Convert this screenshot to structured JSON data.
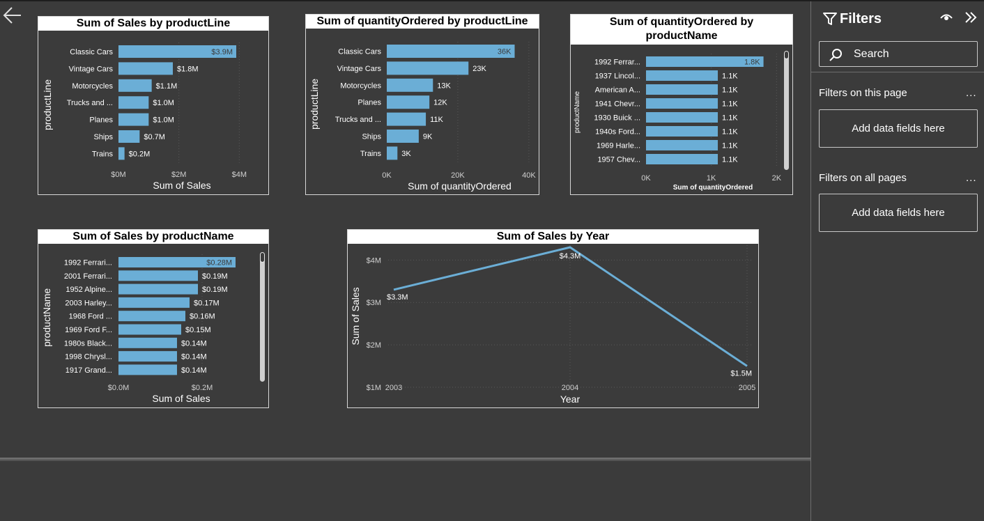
{
  "colors": {
    "bar": "#6baed6",
    "background": "#3b3b3b",
    "line": "#6baed6"
  },
  "nav": {
    "back_icon": "arrow-left-icon"
  },
  "charts": {
    "sales_by_productline": {
      "title": "Sum of Sales by productLine",
      "xlabel": "Sum of Sales",
      "ylabel": "productLine"
    },
    "qty_by_productline": {
      "title": "Sum of quantityOrdered by productLine",
      "xlabel": "Sum of quantityOrdered",
      "ylabel": "productLine"
    },
    "qty_by_productname": {
      "title_line1": "Sum of quantityOrdered by",
      "title_line2": "productName",
      "xlabel": "Sum of quantityOrdered",
      "ylabel": "productName"
    },
    "sales_by_productname": {
      "title": "Sum of Sales by productName",
      "xlabel": "Sum of Sales",
      "ylabel": "productName"
    },
    "sales_by_year": {
      "title": "Sum of Sales by Year",
      "xlabel": "Year",
      "ylabel": "Sum of Sales"
    }
  },
  "chart_data": [
    {
      "id": "c1",
      "type": "bar",
      "orientation": "horizontal",
      "title": "Sum of Sales by productLine",
      "xlabel": "Sum of Sales",
      "ylabel": "productLine",
      "categories": [
        "Classic Cars",
        "Vintage Cars",
        "Motorcycles",
        "Trucks and ...",
        "Planes",
        "Ships",
        "Trains"
      ],
      "values": [
        3.9,
        1.8,
        1.1,
        1.0,
        1.0,
        0.7,
        0.2
      ],
      "value_labels": [
        "$3.9M",
        "$1.8M",
        "$1.1M",
        "$1.0M",
        "$1.0M",
        "$0.7M",
        "$0.2M"
      ],
      "xticks": [
        0,
        2,
        4
      ],
      "xtick_labels": [
        "$0M",
        "$2M",
        "$4M"
      ],
      "xlim": [
        0,
        4.2
      ]
    },
    {
      "id": "c2",
      "type": "bar",
      "orientation": "horizontal",
      "title": "Sum of quantityOrdered by productLine",
      "xlabel": "Sum of quantityOrdered",
      "ylabel": "productLine",
      "categories": [
        "Classic Cars",
        "Vintage Cars",
        "Motorcycles",
        "Planes",
        "Trucks and ...",
        "Ships",
        "Trains"
      ],
      "values": [
        36,
        23,
        13,
        12,
        11,
        9,
        3
      ],
      "value_labels": [
        "36K",
        "23K",
        "13K",
        "12K",
        "11K",
        "9K",
        "3K"
      ],
      "xticks": [
        0,
        20,
        40
      ],
      "xtick_labels": [
        "0K",
        "20K",
        "40K"
      ],
      "xlim": [
        0,
        41
      ]
    },
    {
      "id": "c3",
      "type": "bar",
      "orientation": "horizontal",
      "title": "Sum of quantityOrdered by productName",
      "xlabel": "Sum of quantityOrdered",
      "ylabel": "productName",
      "categories": [
        "1992 Ferrar...",
        "1937 Lincol...",
        "American A...",
        "1941 Chevr...",
        "1930 Buick ...",
        "1940s Ford...",
        "1969 Harle...",
        "1957 Chev..."
      ],
      "values": [
        1.8,
        1.1,
        1.1,
        1.1,
        1.1,
        1.1,
        1.1,
        1.1
      ],
      "value_labels": [
        "1.8K",
        "1.1K",
        "1.1K",
        "1.1K",
        "1.1K",
        "1.1K",
        "1.1K",
        "1.1K"
      ],
      "xticks": [
        0,
        1,
        2
      ],
      "xtick_labels": [
        "0K",
        "1K",
        "2K"
      ],
      "xlim": [
        0,
        2.05
      ]
    },
    {
      "id": "c4",
      "type": "bar",
      "orientation": "horizontal",
      "title": "Sum of Sales by productName",
      "xlabel": "Sum of Sales",
      "ylabel": "productName",
      "categories": [
        "1992 Ferrari...",
        "2001 Ferrari...",
        "1952 Alpine...",
        "2003 Harley...",
        "1968 Ford ...",
        "1969 Ford F...",
        "1980s Black...",
        "1998 Chrysl...",
        "1917 Grand..."
      ],
      "values": [
        0.28,
        0.19,
        0.19,
        0.17,
        0.16,
        0.15,
        0.14,
        0.14,
        0.14
      ],
      "value_labels": [
        "$0.28M",
        "$0.19M",
        "$0.19M",
        "$0.17M",
        "$0.16M",
        "$0.15M",
        "$0.14M",
        "$0.14M",
        "$0.14M"
      ],
      "xticks": [
        0,
        0.2
      ],
      "xtick_labels": [
        "$0.0M",
        "$0.2M"
      ],
      "xlim": [
        0,
        0.3
      ]
    },
    {
      "id": "c5",
      "type": "line",
      "title": "Sum of Sales by Year",
      "xlabel": "Year",
      "ylabel": "Sum of Sales",
      "x": [
        2003,
        2004,
        2005
      ],
      "xtick_labels": [
        "2003",
        "2004",
        "2005"
      ],
      "values": [
        3.3,
        4.3,
        1.5
      ],
      "value_labels": [
        "$3.3M",
        "$4.3M",
        "$1.5M"
      ],
      "yticks": [
        1,
        2,
        3,
        4
      ],
      "ytick_labels": [
        "$1M",
        "$2M",
        "$3M",
        "$4M"
      ],
      "ylim": [
        1,
        4.35
      ],
      "grid": true
    }
  ],
  "filters": {
    "title": "Filters",
    "search_placeholder": "Search",
    "this_page_label": "Filters on this page",
    "all_pages_label": "Filters on all pages",
    "more_label": "...",
    "add_fields_label": "Add data fields here",
    "icons": [
      "filter-icon",
      "eye-icon",
      "collapse-pane-icon",
      "search-icon"
    ]
  }
}
